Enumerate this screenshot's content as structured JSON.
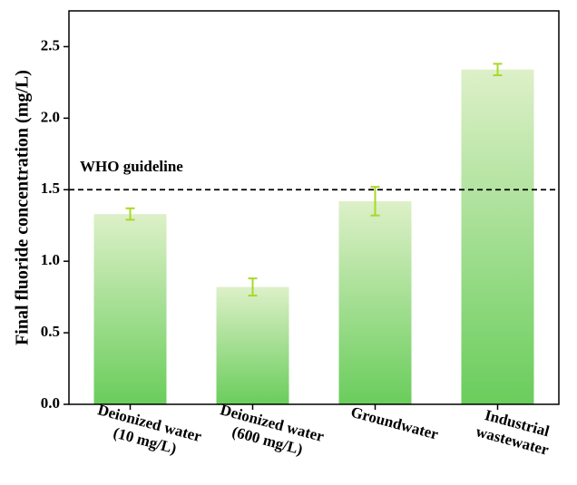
{
  "chart_data": {
    "type": "bar",
    "y_label": "Final fluoride concentration (mg/L)",
    "categories": [
      [
        "Deionized water",
        "(10 mg/L)"
      ],
      [
        "Deionized water",
        "(600 mg/L)"
      ],
      [
        "Groundwater"
      ],
      [
        "Industrial",
        "wastewater"
      ]
    ],
    "values": [
      1.33,
      0.82,
      1.42,
      2.34
    ],
    "errors": [
      0.04,
      0.06,
      0.1,
      0.04
    ],
    "color": "#6acd5c",
    "error_color": "#a8d82a",
    "ylim": [
      0,
      2.75
    ],
    "yticks": [
      {
        "value": 0,
        "label": "0.0"
      },
      0.5,
      {
        "value": 1,
        "label": "1.0"
      },
      1.5,
      {
        "value": 2,
        "label": "2.0"
      },
      2.5
    ],
    "reference_line": {
      "value": 1.5,
      "label": "WHO guideline"
    }
  }
}
